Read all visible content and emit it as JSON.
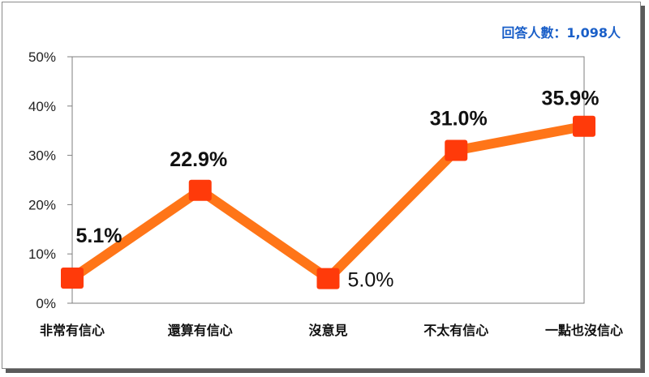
{
  "respondents_note": "回答人數：1,098人",
  "colors": {
    "line": "#FF7518",
    "marker": "#FF3A0A",
    "note": "#1a5fc8",
    "axis": "#7f7f7f",
    "frame_shadow": "#5a5a5a"
  },
  "chart_data": {
    "type": "line",
    "title": "",
    "xlabel": "",
    "ylabel": "",
    "categories": [
      "非常有信心",
      "還算有信心",
      "沒意見",
      "不太有信心",
      "一點也沒信心"
    ],
    "series": [
      {
        "values": [
          5.1,
          22.9,
          5.0,
          31.0,
          35.9
        ]
      }
    ],
    "data_labels": [
      "5.1%",
      "22.9%",
      "5.0%",
      "31.0%",
      "35.9%"
    ],
    "data_label_bold": [
      true,
      true,
      false,
      true,
      true
    ],
    "y_ticks": [
      "0%",
      "10%",
      "20%",
      "30%",
      "40%",
      "50%"
    ],
    "ylim": [
      0,
      50
    ],
    "grid": false,
    "legend": "none"
  }
}
